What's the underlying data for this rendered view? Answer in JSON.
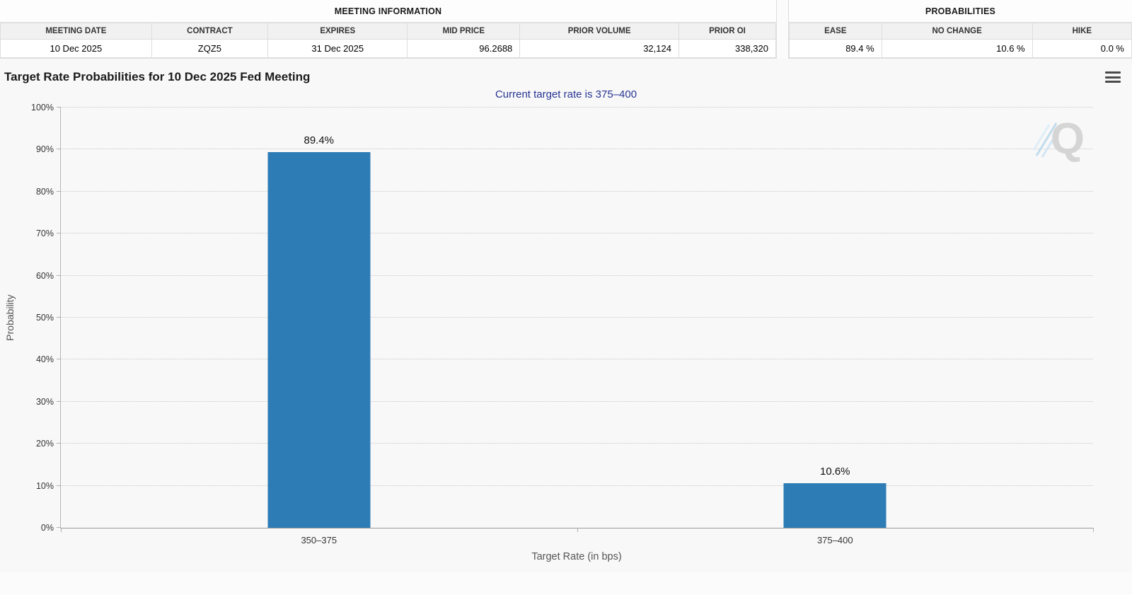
{
  "meeting_information": {
    "title": "MEETING INFORMATION",
    "columns": [
      "MEETING DATE",
      "CONTRACT",
      "EXPIRES",
      "MID PRICE",
      "PRIOR VOLUME",
      "PRIOR OI"
    ],
    "values": [
      "10 Dec 2025",
      "ZQZ5",
      "31 Dec 2025",
      "96.2688",
      "32,124",
      "338,320"
    ]
  },
  "probabilities": {
    "title": "PROBABILITIES",
    "columns": [
      "EASE",
      "NO CHANGE",
      "HIKE"
    ],
    "values": [
      "89.4 %",
      "10.6 %",
      "0.0 %"
    ]
  },
  "chart_data": {
    "type": "bar",
    "title": "Target Rate Probabilities for 10 Dec 2025 Fed Meeting",
    "subtitle": "Current target rate is 375–400",
    "categories": [
      "350–375",
      "375–400"
    ],
    "values": [
      89.4,
      10.6
    ],
    "value_labels": [
      "89.4%",
      "10.6%"
    ],
    "xlabel": "Target Rate (in bps)",
    "ylabel": "Probability",
    "ylim": [
      0,
      100
    ],
    "ytick_step": 10,
    "ytick_suffix": "%",
    "grid": "horizontal-dotted",
    "legend": "none",
    "bar_color": "#2d7cb6",
    "subtitle_color": "#283593",
    "watermark": "Q",
    "menu_icon": "hamburger-menu"
  }
}
